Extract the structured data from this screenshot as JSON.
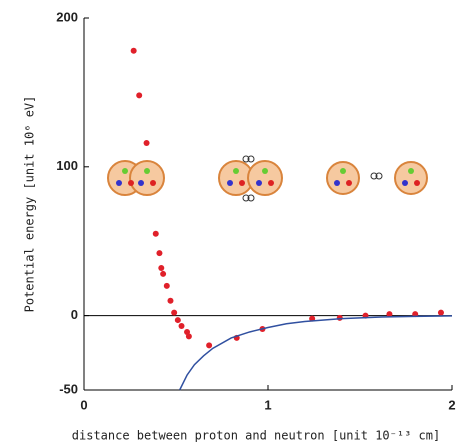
{
  "chart_data": {
    "type": "scatter",
    "x_label": "distance between proton and neutron [unit 10⁻¹³ cm]",
    "y_label": "Potential energy  [unit 10⁶ eV]",
    "xlim": [
      0,
      2
    ],
    "ylim": [
      -50,
      200
    ],
    "xticks": [
      0,
      1,
      2
    ],
    "yticks": [
      -50,
      0,
      100,
      200
    ],
    "hline": 0,
    "series": [
      {
        "type": "scatter",
        "color": "#e0202a",
        "x": [
          0.27,
          0.3,
          0.34,
          0.39,
          0.41,
          0.42,
          0.43,
          0.45,
          0.47,
          0.49,
          0.51,
          0.53,
          0.56,
          0.57,
          0.68,
          0.83,
          0.97,
          1.24,
          1.39,
          1.53,
          1.66,
          1.8,
          1.94
        ],
        "values": [
          178,
          148,
          116,
          55,
          42,
          32,
          28,
          20,
          10,
          2,
          -3,
          -7,
          -11,
          -14,
          -20,
          -15,
          -9,
          -2,
          -1.5,
          0,
          1,
          1,
          2
        ]
      },
      {
        "type": "line",
        "color": "#3050a0",
        "x": [
          0.52,
          0.56,
          0.6,
          0.65,
          0.7,
          0.8,
          0.9,
          1.0,
          1.1,
          1.2,
          1.4,
          1.6,
          1.8,
          2.0
        ],
        "values": [
          -50,
          -40,
          -33,
          -27,
          -22,
          -15,
          -11,
          -8,
          -5.5,
          -4,
          -2,
          -1,
          -0.5,
          -0.2
        ]
      }
    ]
  }
}
